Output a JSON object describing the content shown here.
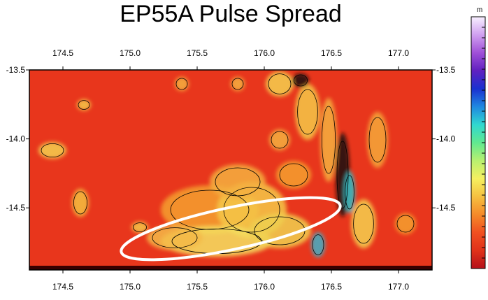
{
  "title": "EP55A Pulse Spread",
  "map": {
    "x_axis": {
      "range": [
        174.25,
        177.25
      ],
      "tick_labels": [
        "174.5",
        "175.0",
        "175.5",
        "176.0",
        "176.5",
        "177.0"
      ],
      "tick_values": [
        174.5,
        175.0,
        175.5,
        176.0,
        176.5,
        177.0
      ]
    },
    "y_axis": {
      "range": [
        -14.95,
        -13.5
      ],
      "tick_labels": [
        "-13.5",
        "-14.0",
        "-14.5"
      ],
      "tick_values": [
        -13.5,
        -14.0,
        -14.5
      ]
    },
    "ellipse_highlight": {
      "color": "#ffffff",
      "center_lon": 175.8,
      "center_lat": -14.7,
      "description": "white ellipse outline around high-spread area"
    },
    "track_line_lat": -14.95
  },
  "colorbar": {
    "unit": "m",
    "colors": [
      "#b5101a",
      "#e0321a",
      "#f05020",
      "#f58a2a",
      "#f5c040",
      "#f5f060",
      "#b8f070",
      "#60e890",
      "#30d8d0",
      "#2088e0",
      "#1a30d0",
      "#6020c0",
      "#a050d8",
      "#d0a0f0",
      "#f8f0ff"
    ]
  }
}
